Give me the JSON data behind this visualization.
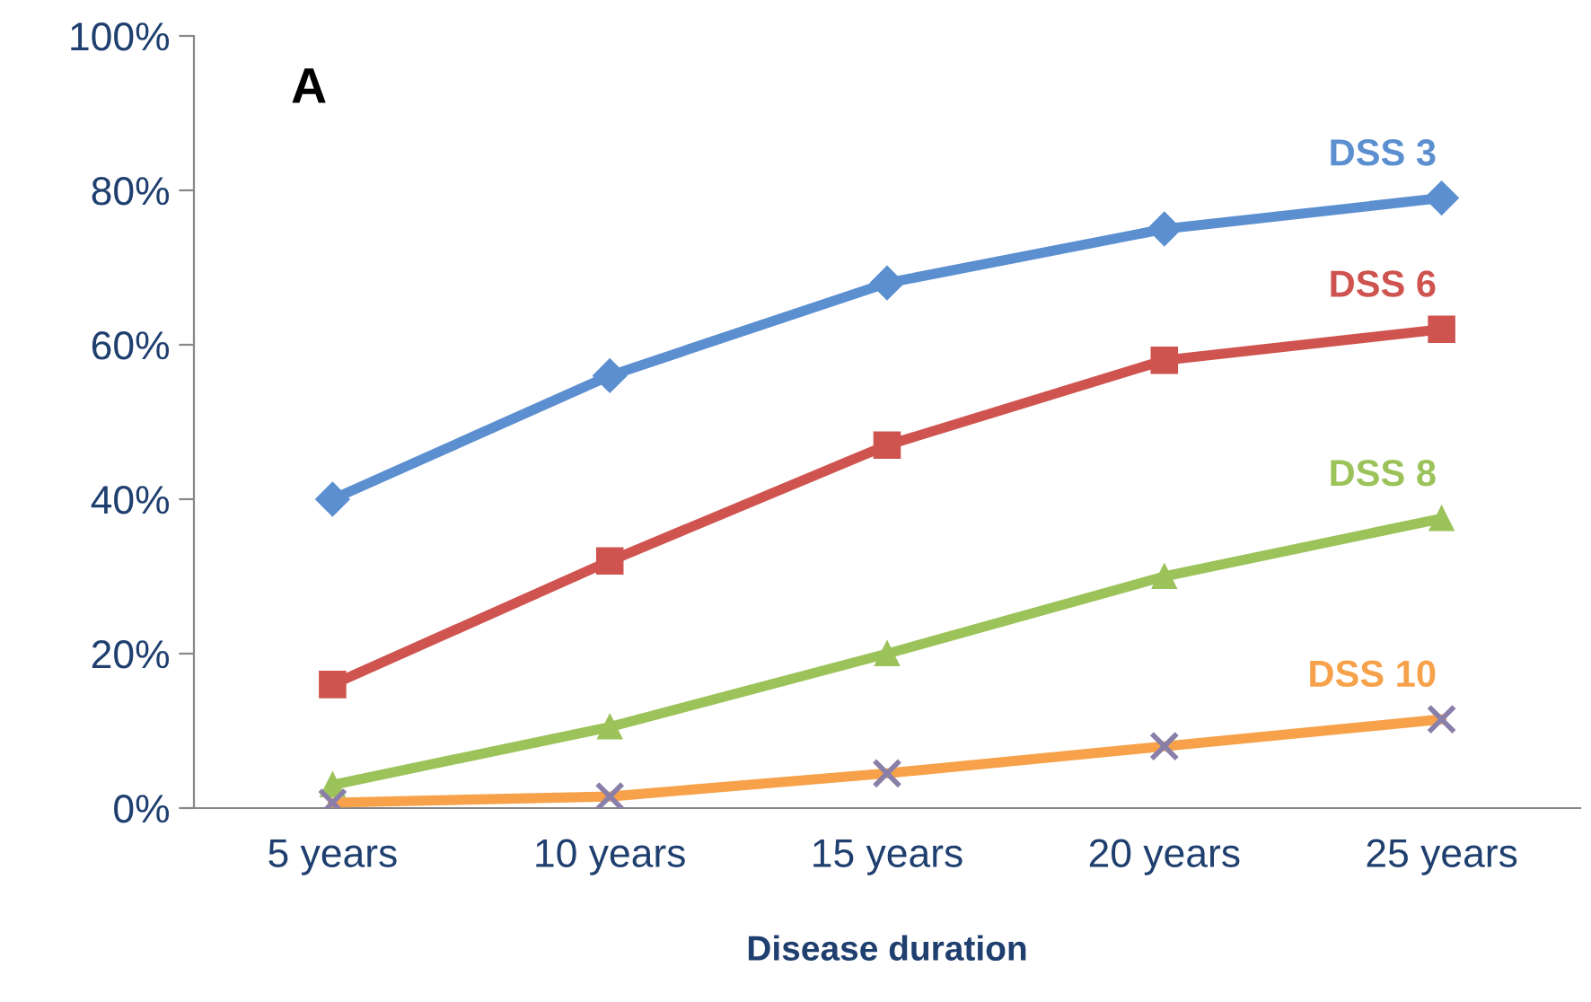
{
  "chart_data": {
    "type": "line",
    "xlabel": "Disease duration",
    "categories": [
      "5 years",
      "10 years",
      "15 years",
      "20 years",
      "25 years"
    ],
    "series": [
      {
        "name": "DSS 3",
        "color": "#5b8fd0",
        "marker": "diamond",
        "values": [
          40,
          56,
          68,
          75,
          79
        ]
      },
      {
        "name": "DSS 6",
        "color": "#cf5450",
        "marker": "square",
        "values": [
          16,
          32,
          47,
          58,
          62
        ]
      },
      {
        "name": "DSS 8",
        "color": "#9cc35a",
        "marker": "triangle",
        "values": [
          3,
          10.5,
          20,
          30,
          37.5
        ]
      },
      {
        "name": "DSS 10",
        "color": "#f7a24a",
        "marker": "cross",
        "values": [
          0.7,
          1.5,
          4.5,
          8,
          11.5
        ]
      }
    ],
    "ylim": [
      0,
      100
    ],
    "yticks": [
      {
        "value": 0,
        "label": "0%"
      },
      {
        "value": 20,
        "label": "20%"
      },
      {
        "value": 40,
        "label": "40%"
      },
      {
        "value": 60,
        "label": "60%"
      },
      {
        "value": 80,
        "label": "80%"
      },
      {
        "value": 100,
        "label": "100%"
      }
    ],
    "annotations": [
      "A"
    ],
    "grid": false,
    "legend": false,
    "line_style": "solid"
  }
}
